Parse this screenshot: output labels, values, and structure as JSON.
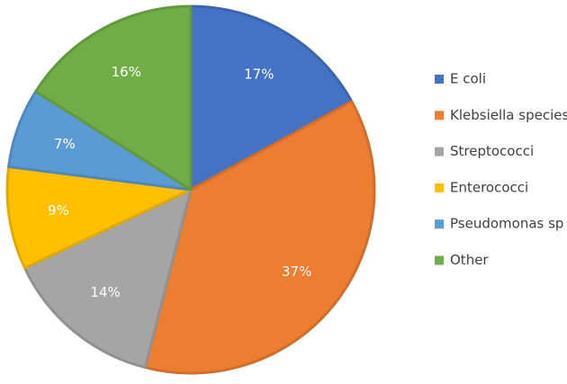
{
  "chart_data": {
    "type": "pie",
    "categories": [
      "E coli",
      "Klebsiella species",
      "Streptococci",
      "Enterococci",
      "Pseudomonas sp",
      "Other"
    ],
    "values": [
      17,
      37,
      14,
      9,
      7,
      16
    ],
    "value_labels": [
      "17%",
      "37%",
      "14%",
      "9%",
      "7%",
      "16%"
    ],
    "colors": [
      "#4472C4",
      "#ED7D31",
      "#A5A5A5",
      "#FFC000",
      "#5B9BD5",
      "#70AD47"
    ],
    "title": "",
    "legend_position": "right",
    "start": "top",
    "direction": "clockwise"
  }
}
